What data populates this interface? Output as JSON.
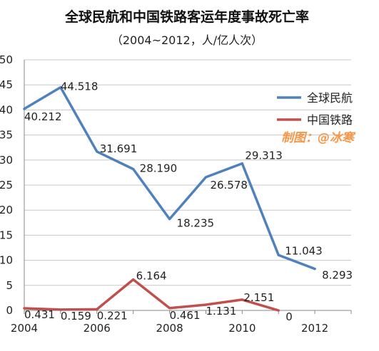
{
  "chart_data": {
    "type": "line",
    "title": "全球民航和中国铁路客运年度事故死亡率",
    "subtitle": "（2004~2012，人/亿人次）",
    "xlabel": "",
    "ylabel": "",
    "xlim": [
      2004,
      2013
    ],
    "ylim": [
      0,
      50
    ],
    "x_ticks": [
      2004,
      2006,
      2008,
      2010,
      2012
    ],
    "y_ticks": [
      0,
      5,
      10,
      15,
      20,
      25,
      30,
      35,
      40,
      45,
      50
    ],
    "x_tick_labels": [
      "2004",
      "2006",
      "2008",
      "2010",
      "2012"
    ],
    "y_tick_labels": [
      "0",
      "5",
      "10",
      "15",
      "20",
      "25",
      "30",
      "35",
      "40",
      "45",
      "50"
    ],
    "grid": "horizontal",
    "legend_position": "right",
    "series": [
      {
        "name": "全球民航",
        "color": "#4f81bd",
        "x": [
          2004,
          2005,
          2006,
          2007,
          2008,
          2009,
          2010,
          2011,
          2012
        ],
        "values": [
          40.212,
          44.518,
          31.691,
          28.19,
          18.235,
          26.578,
          29.313,
          11.043,
          8.293
        ],
        "labels": [
          "40.212",
          "44.518",
          "31.691",
          "28.190",
          "18.235",
          "26.578",
          "29.313",
          "11.043",
          "8.293"
        ]
      },
      {
        "name": "中国铁路",
        "color": "#c0504d",
        "x": [
          2004,
          2005,
          2006,
          2007,
          2008,
          2009,
          2010,
          2011
        ],
        "values": [
          0.431,
          0.159,
          0.221,
          6.164,
          0.461,
          1.131,
          2.151,
          0
        ],
        "labels": [
          "0.431",
          "0.159",
          "0.221",
          "6.164",
          "0.461",
          "1.131",
          "2.151",
          "0"
        ]
      }
    ],
    "annotation": {
      "text": "制图：@冰寒",
      "color": "#f79646"
    }
  }
}
